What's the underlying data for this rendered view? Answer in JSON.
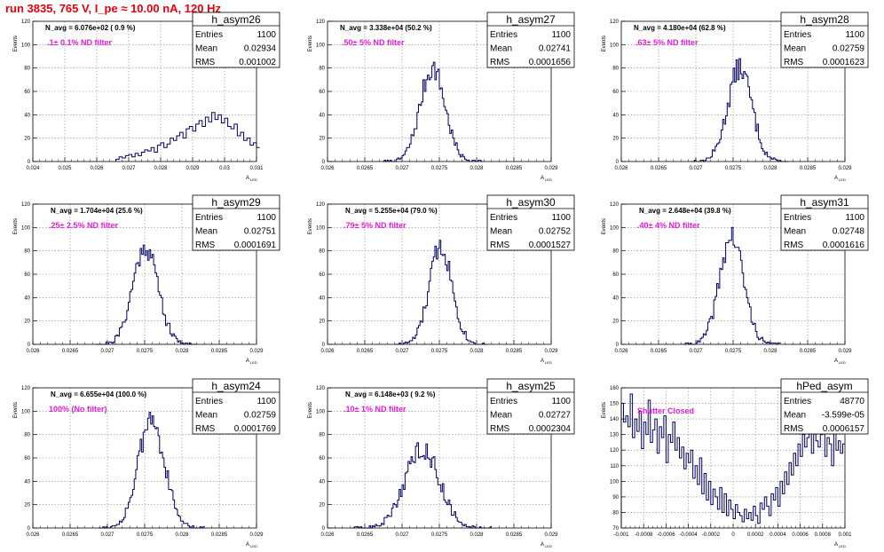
{
  "page": {
    "title": "run 3835,   765 V, I_pe ≈ 10.00 nA, 120 Hz"
  },
  "chart_data": [
    {
      "type": "histogram",
      "name": "h_asym26",
      "stats": {
        "entries": "1100",
        "mean": "0.02934",
        "rms": "0.001002"
      },
      "navg": "N_avg = 6.076e+02 ( 0.9 %)",
      "filter": ".1± 0.1% ND filter",
      "xlim": [
        0.024,
        0.031
      ],
      "ylim": [
        0,
        120
      ],
      "xticks": [
        0.024,
        0.025,
        0.026,
        0.027,
        0.028,
        0.029,
        0.03,
        0.031
      ],
      "xtick_labels": [
        "0.024",
        "0.025",
        "0.026",
        "0.027",
        "0.028",
        "0.029",
        "0.03",
        "0.031"
      ],
      "yticks": [
        0,
        20,
        40,
        60,
        80,
        100,
        120
      ],
      "xlabel": "",
      "ylabel": "Events",
      "bins": {
        "start": 0.0266,
        "width": 0.0001,
        "values": [
          2,
          4,
          3,
          5,
          6,
          4,
          7,
          5,
          8,
          10,
          9,
          12,
          8,
          14,
          16,
          12,
          15,
          20,
          18,
          22,
          25,
          20,
          28,
          30,
          26,
          32,
          35,
          30,
          38,
          34,
          42,
          36,
          40,
          33,
          37,
          30,
          28,
          32,
          22,
          25,
          18,
          20,
          14,
          16,
          12
        ]
      }
    },
    {
      "type": "histogram",
      "name": "h_asym27",
      "stats": {
        "entries": "1100",
        "mean": "0.02741",
        "rms": "0.0001656"
      },
      "navg": "N_avg = 3.338e+04 (50.2 %)",
      "filter": ".50± 5% ND filter",
      "xlim": [
        0.026,
        0.029
      ],
      "ylim": [
        0,
        120
      ],
      "xticks": [
        0.026,
        0.0265,
        0.027,
        0.0275,
        0.028,
        0.0285,
        0.029
      ],
      "xtick_labels": [
        "0.026",
        "0.0265",
        "0.027",
        "0.0275",
        "0.028",
        "0.0285",
        "0.029"
      ],
      "yticks": [
        0,
        20,
        40,
        60,
        80,
        100,
        120
      ],
      "xlabel": "",
      "ylabel": "Events",
      "gauss": {
        "mu": 0.02741,
        "sigma": 0.0001656,
        "amp": 80,
        "binw": 2e-05,
        "seed": 7
      }
    },
    {
      "type": "histogram",
      "name": "h_asym28",
      "stats": {
        "entries": "1100",
        "mean": "0.02759",
        "rms": "0.0001623"
      },
      "navg": "N_avg = 4.180e+04 (62.8 %)",
      "filter": ".63± 5% ND filter",
      "xlim": [
        0.026,
        0.029
      ],
      "ylim": [
        0,
        120
      ],
      "xticks": [
        0.026,
        0.0265,
        0.027,
        0.0275,
        0.028,
        0.0285,
        0.029
      ],
      "xtick_labels": [
        "0.026",
        "0.0265",
        "0.027",
        "0.0275",
        "0.028",
        "0.0285",
        "0.029"
      ],
      "yticks": [
        0,
        20,
        40,
        60,
        80,
        100,
        120
      ],
      "xlabel": "",
      "ylabel": "Events",
      "gauss": {
        "mu": 0.02759,
        "sigma": 0.0001623,
        "amp": 80,
        "binw": 2e-05,
        "seed": 13
      }
    },
    {
      "type": "histogram",
      "name": "h_asym29",
      "stats": {
        "entries": "1100",
        "mean": "0.02751",
        "rms": "0.0001691"
      },
      "navg": "N_avg = 1.704e+04 (25.6 %)",
      "filter": ".25± 2.5% ND filter",
      "xlim": [
        0.026,
        0.029
      ],
      "ylim": [
        0,
        120
      ],
      "xticks": [
        0.026,
        0.0265,
        0.027,
        0.0275,
        0.028,
        0.0285,
        0.029
      ],
      "xtick_labels": [
        "0.026",
        "0.0265",
        "0.027",
        "0.0275",
        "0.028",
        "0.0285",
        "0.029"
      ],
      "yticks": [
        0,
        20,
        40,
        60,
        80,
        100,
        120
      ],
      "xlabel": "",
      "ylabel": "Events",
      "gauss": {
        "mu": 0.02751,
        "sigma": 0.0001691,
        "amp": 84,
        "binw": 2e-05,
        "seed": 21
      }
    },
    {
      "type": "histogram",
      "name": "h_asym30",
      "stats": {
        "entries": "1100",
        "mean": "0.02752",
        "rms": "0.0001527"
      },
      "navg": "N_avg = 5.255e+04 (79.0 %)",
      "filter": ".79± 5% ND filter",
      "xlim": [
        0.026,
        0.029
      ],
      "ylim": [
        0,
        120
      ],
      "xticks": [
        0.026,
        0.0265,
        0.027,
        0.0275,
        0.028,
        0.0285,
        0.029
      ],
      "xtick_labels": [
        "0.026",
        "0.0265",
        "0.027",
        "0.0275",
        "0.028",
        "0.0285",
        "0.029"
      ],
      "yticks": [
        0,
        20,
        40,
        60,
        80,
        100,
        120
      ],
      "xlabel": "",
      "ylabel": "Events",
      "gauss": {
        "mu": 0.02752,
        "sigma": 0.0001527,
        "amp": 84,
        "binw": 2e-05,
        "seed": 33
      }
    },
    {
      "type": "histogram",
      "name": "h_asym31",
      "stats": {
        "entries": "1100",
        "mean": "0.02748",
        "rms": "0.0001616"
      },
      "navg": "N_avg = 2.648e+04 (39.8 %)",
      "filter": ".40± 4% ND filter",
      "xlim": [
        0.026,
        0.029
      ],
      "ylim": [
        0,
        120
      ],
      "xticks": [
        0.026,
        0.0265,
        0.027,
        0.0275,
        0.028,
        0.0285,
        0.029
      ],
      "xtick_labels": [
        "0.026",
        "0.0265",
        "0.027",
        "0.0275",
        "0.028",
        "0.0285",
        "0.029"
      ],
      "yticks": [
        0,
        20,
        40,
        60,
        80,
        100,
        120
      ],
      "xlabel": "",
      "ylabel": "Events",
      "gauss": {
        "mu": 0.02748,
        "sigma": 0.0001616,
        "amp": 92,
        "binw": 2e-05,
        "seed": 41
      }
    },
    {
      "type": "histogram",
      "name": "h_asym24",
      "stats": {
        "entries": "1100",
        "mean": "0.02759",
        "rms": "0.0001769"
      },
      "navg": "N_avg = 6.655e+04 (100.0 %)",
      "filter": "100% (No filter)",
      "xlim": [
        0.026,
        0.029
      ],
      "ylim": [
        0,
        120
      ],
      "xticks": [
        0.026,
        0.0265,
        0.027,
        0.0275,
        0.028,
        0.0285,
        0.029
      ],
      "xtick_labels": [
        "0.026",
        "0.0265",
        "0.027",
        "0.0275",
        "0.028",
        "0.0285",
        "0.029"
      ],
      "yticks": [
        0,
        20,
        40,
        60,
        80,
        100,
        120
      ],
      "xlabel": "",
      "ylabel": "Events",
      "gauss": {
        "mu": 0.02759,
        "sigma": 0.0001769,
        "amp": 92,
        "binw": 2e-05,
        "seed": 55
      }
    },
    {
      "type": "histogram",
      "name": "h_asym25",
      "stats": {
        "entries": "1100",
        "mean": "0.02727",
        "rms": "0.0002304"
      },
      "navg": "N_avg = 6.148e+03 ( 9.2 %)",
      "filter": ".10± 1% ND filter",
      "xlim": [
        0.026,
        0.029
      ],
      "ylim": [
        0,
        120
      ],
      "xticks": [
        0.026,
        0.0265,
        0.027,
        0.0275,
        0.028,
        0.0285,
        0.029
      ],
      "xtick_labels": [
        "0.026",
        "0.0265",
        "0.027",
        "0.0275",
        "0.028",
        "0.0285",
        "0.029"
      ],
      "yticks": [
        0,
        20,
        40,
        60,
        80,
        100,
        120
      ],
      "xlabel": "",
      "ylabel": "Events",
      "gauss": {
        "mu": 0.02727,
        "sigma": 0.0002304,
        "amp": 68,
        "binw": 2e-05,
        "seed": 63
      }
    },
    {
      "type": "histogram",
      "name": "hPed_asym",
      "stats": {
        "entries": "48770",
        "mean": "-3.599e-05",
        "rms": "0.0006157"
      },
      "navg": "",
      "filter": "Shutter Closed",
      "xlim": [
        -0.001,
        0.001
      ],
      "ylim": [
        70,
        160
      ],
      "xticks": [
        -0.001,
        -0.0008,
        -0.0006,
        -0.0004,
        -0.0002,
        0,
        0.0002,
        0.0004,
        0.0006,
        0.0008,
        0.001
      ],
      "xtick_labels": [
        "-0.001",
        "-0.0008",
        "-0.0006",
        "-0.0004",
        "-0.0002",
        "0",
        "0.0002",
        "0.0004",
        "0.0006",
        "0.0008",
        "0.001"
      ],
      "yticks": [
        70,
        80,
        90,
        100,
        110,
        120,
        130,
        140,
        150,
        160
      ],
      "xlabel": "",
      "ylabel": "Events",
      "bins": {
        "start": -0.001,
        "width": 2e-05,
        "values": [
          150,
          138,
          142,
          135,
          156,
          128,
          140,
          132,
          145,
          121,
          138,
          130,
          152,
          125,
          133,
          140,
          118,
          135,
          128,
          142,
          112,
          130,
          125,
          138,
          120,
          128,
          115,
          122,
          108,
          118,
          112,
          120,
          102,
          110,
          98,
          115,
          92,
          105,
          88,
          100,
          85,
          95,
          90,
          82,
          96,
          80,
          92,
          78,
          88,
          82,
          76,
          85,
          80,
          78,
          74,
          82,
          76,
          80,
          75,
          84,
          78,
          73,
          86,
          82,
          90,
          84,
          78,
          92,
          88,
          96,
          84,
          100,
          92,
          106,
          98,
          112,
          104,
          118,
          110,
          124,
          116,
          130,
          122,
          128,
          134,
          118,
          140,
          126,
          122,
          130,
          136,
          116,
          128,
          124,
          110,
          132,
          120,
          126,
          118,
          124
        ]
      }
    }
  ],
  "axis_label_x": "A",
  "axis_label_x_sub": "LED",
  "stat_labels": {
    "entries": "Entries",
    "mean": "Mean",
    "rms": "RMS"
  }
}
